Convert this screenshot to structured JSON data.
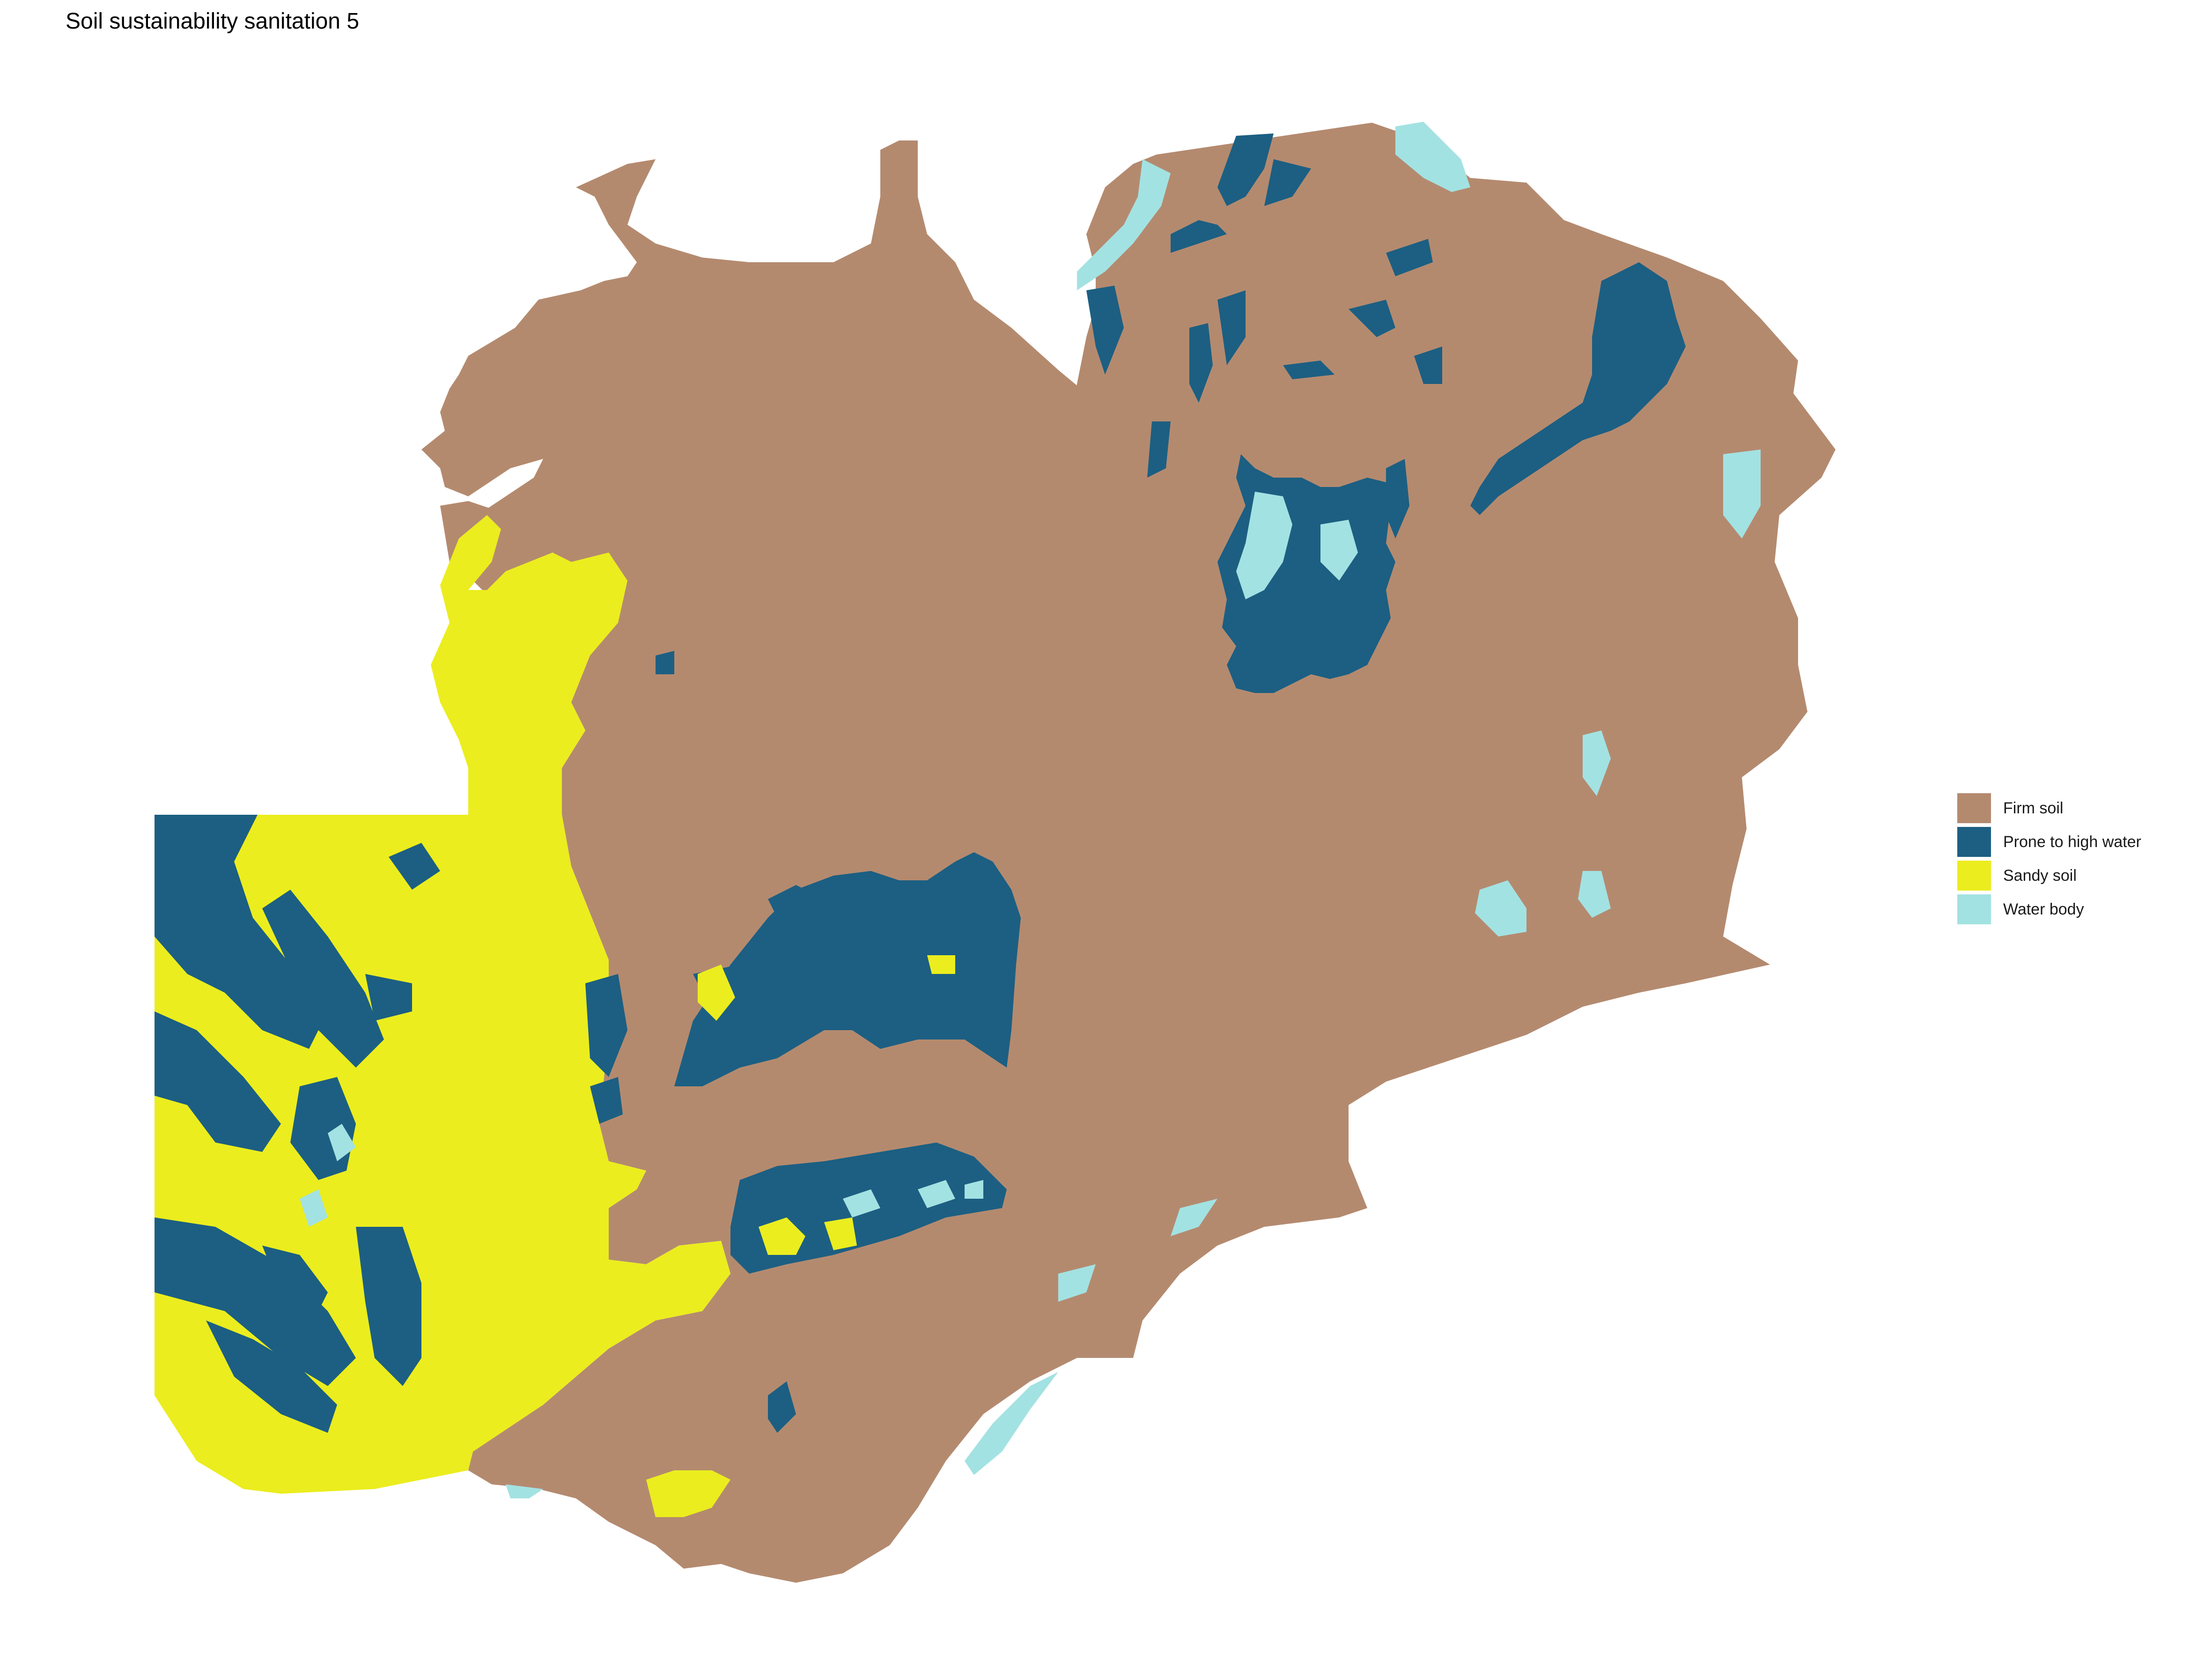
{
  "map": {
    "title": "Soil sustainability sanitation 5",
    "colors": {
      "firm_soil": "#b48a6f",
      "prone_to_high_water": "#1c5f82",
      "sandy_soil": "#ebed1e",
      "water_body": "#a3e2e2"
    }
  },
  "legend": {
    "items": [
      {
        "label": "Firm soil",
        "color": "#b48a6f"
      },
      {
        "label": "Prone to high water",
        "color": "#1c5f82"
      },
      {
        "label": "Sandy soil",
        "color": "#ebed1e"
      },
      {
        "label": "Water body",
        "color": "#a3e2e2"
      }
    ]
  }
}
